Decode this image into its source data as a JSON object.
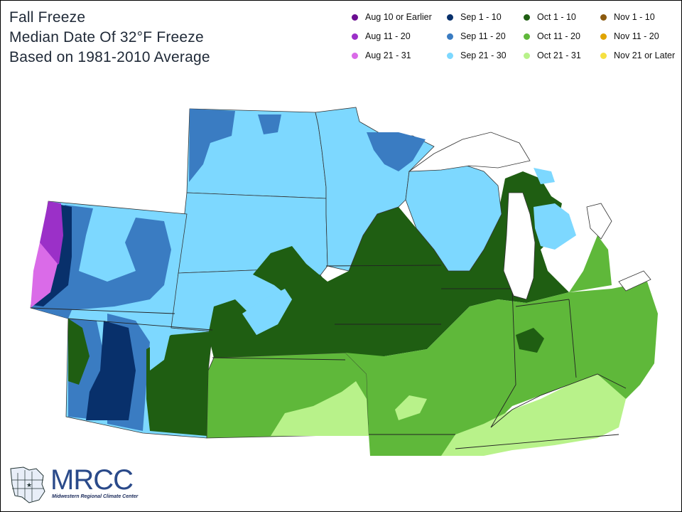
{
  "header": {
    "title": "Fall Freeze",
    "subtitle": "Median Date Of 32°F Freeze",
    "note": "Based on 1981-2010 Average"
  },
  "legend": [
    {
      "label": "Aug 10 or Earlier",
      "color": "#6a0d91"
    },
    {
      "label": "Sep 1 - 10",
      "color": "#08306b"
    },
    {
      "label": "Oct 1 - 10",
      "color": "#1f5e12"
    },
    {
      "label": "Nov 1 - 10",
      "color": "#8b5a0f"
    },
    {
      "label": "Aug 11 - 20",
      "color": "#9b30c8"
    },
    {
      "label": "Sep 11 - 20",
      "color": "#3a7cc2"
    },
    {
      "label": "Oct 11 - 20",
      "color": "#5fb83a"
    },
    {
      "label": "Nov 11 - 20",
      "color": "#e0a400"
    },
    {
      "label": "Aug 21 - 31",
      "color": "#da6be8"
    },
    {
      "label": "Sep 21 - 30",
      "color": "#7dd8ff"
    },
    {
      "label": "Oct 21 - 31",
      "color": "#b8f28a"
    },
    {
      "label": "Nov 21 or Later",
      "color": "#f5e042"
    }
  ],
  "logo": {
    "name": "MRCC",
    "subtitle": "Midwestern Regional Climate Center"
  }
}
